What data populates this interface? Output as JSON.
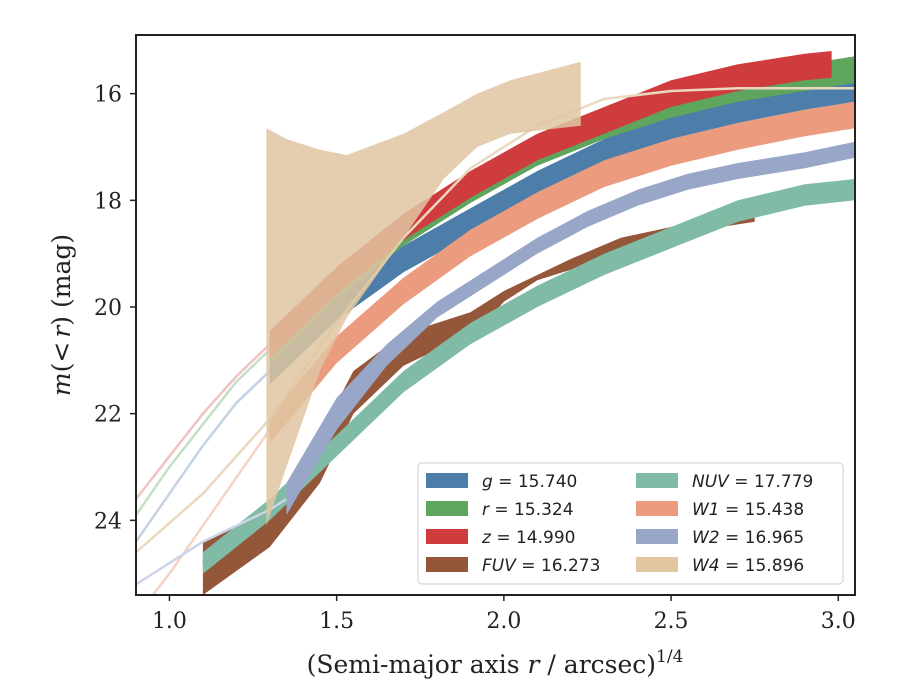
{
  "chart_data": {
    "type": "line",
    "xlabel": "(Semi-major axis r / arcsec)",
    "xlabel_parts": {
      "prefix": "(Semi-major axis ",
      "var": "r",
      "suffix": " / arcsec)",
      "exponent": "1/4"
    },
    "ylabel": "m(< r) (mag)",
    "ylabel_parts": {
      "m": "m",
      "open": "(",
      "lt": "<",
      "r": "r",
      "close": ")",
      "unit": " (mag)"
    },
    "xlim": [
      0.9,
      3.05
    ],
    "ylim": [
      25.4,
      14.9
    ],
    "y_inverted": true,
    "xticks": [
      {
        "value": 1.0,
        "label": "1.0"
      },
      {
        "value": 1.5,
        "label": "1.5"
      },
      {
        "value": 2.0,
        "label": "2.0"
      },
      {
        "value": 2.5,
        "label": "2.5"
      },
      {
        "value": 3.0,
        "label": "3.0"
      }
    ],
    "yticks": [
      {
        "value": 16,
        "label": "16"
      },
      {
        "value": 18,
        "label": "18"
      },
      {
        "value": 20,
        "label": "20"
      },
      {
        "value": 22,
        "label": "22"
      },
      {
        "value": 24,
        "label": "24"
      }
    ],
    "grid": false,
    "legend_position": "lower-right",
    "series": [
      {
        "key": "g",
        "legend_label": "g = 15.740",
        "legend_var": "g",
        "legend_value": "15.740",
        "color": "#4c7ea9",
        "model_color": "#c4d2e4",
        "band": 0.5,
        "x": [
          1.3,
          1.5,
          1.7,
          1.9,
          2.1,
          2.3,
          2.5,
          2.7,
          2.9,
          3.05
        ],
        "y": [
          21.2,
          20.0,
          19.1,
          18.4,
          17.7,
          17.1,
          16.6,
          16.3,
          16.05,
          15.9
        ],
        "model_x": [
          0.9,
          1.0,
          1.1,
          1.2,
          1.3
        ],
        "model_y": [
          24.4,
          23.5,
          22.6,
          21.8,
          21.2
        ]
      },
      {
        "key": "r",
        "legend_label": "r = 15.324",
        "legend_var": "r",
        "legend_value": "15.324",
        "color": "#5ea55e",
        "model_color": "#c4e0c4",
        "band": 0.5,
        "x": [
          1.3,
          1.5,
          1.7,
          1.9,
          2.1,
          2.3,
          2.5,
          2.7,
          2.9,
          3.05
        ],
        "y": [
          20.8,
          19.6,
          18.6,
          17.8,
          17.1,
          16.6,
          16.2,
          15.9,
          15.7,
          15.55
        ],
        "model_x": [
          0.9,
          1.0,
          1.1,
          1.2,
          1.3
        ],
        "model_y": [
          23.9,
          23.0,
          22.2,
          21.4,
          20.8
        ]
      },
      {
        "key": "z",
        "legend_label": "z = 14.990",
        "legend_var": "z",
        "legend_value": "14.990",
        "color": "#cf3c3e",
        "model_color": "#f0c3c3",
        "band": 0.5,
        "x": [
          1.3,
          1.5,
          1.7,
          1.9,
          2.1,
          2.3,
          2.5,
          2.7,
          2.9,
          2.98
        ],
        "y": [
          20.7,
          19.5,
          18.5,
          17.7,
          17.0,
          16.5,
          16.0,
          15.7,
          15.5,
          15.45
        ],
        "model_x": [
          0.9,
          1.0,
          1.1,
          1.2,
          1.3
        ],
        "model_y": [
          23.6,
          22.8,
          22.0,
          21.3,
          20.7
        ]
      },
      {
        "key": "FUV",
        "legend_label": "FUV = 16.273",
        "legend_var": "FUV",
        "legend_value": "16.273",
        "color": "#94573a",
        "model_color": "#c9a08d",
        "band_low": [
          25.4,
          24.5,
          23.3,
          22.0,
          21.1,
          20.8,
          20.6,
          19.9,
          19.5,
          19.3,
          19.0,
          18.8,
          18.5,
          18.4
        ],
        "band_high": [
          24.4,
          23.8,
          22.4,
          21.2,
          20.5,
          20.3,
          20.1,
          19.7,
          19.4,
          19.1,
          18.7,
          18.5,
          18.2,
          18.2
        ],
        "x": [
          1.1,
          1.3,
          1.45,
          1.55,
          1.7,
          1.8,
          1.9,
          2.0,
          2.1,
          2.2,
          2.35,
          2.5,
          2.65,
          2.75
        ],
        "y": [
          24.9,
          24.1,
          22.8,
          21.6,
          20.8,
          20.5,
          20.3,
          19.8,
          19.45,
          19.2,
          18.85,
          18.6,
          18.35,
          18.3
        ],
        "model_x": [
          2.75,
          2.85,
          2.95,
          3.05
        ],
        "model_y": [
          18.3,
          18.05,
          17.9,
          17.75
        ]
      },
      {
        "key": "NUV",
        "legend_label": "NUV = 17.779",
        "legend_var": "NUV",
        "legend_value": "17.779",
        "color": "#7fbba5",
        "model_color": "#cde5dc",
        "band": 0.4,
        "x": [
          1.1,
          1.3,
          1.5,
          1.7,
          1.9,
          2.1,
          2.3,
          2.5,
          2.7,
          2.9,
          3.05
        ],
        "y": [
          24.8,
          23.8,
          22.6,
          21.4,
          20.5,
          19.8,
          19.2,
          18.7,
          18.2,
          17.9,
          17.8
        ],
        "model_x": [],
        "model_y": []
      },
      {
        "key": "W1",
        "legend_label": "W1 = 15.438",
        "legend_var": "W1",
        "legend_value": "15.438",
        "color": "#eb9b7e",
        "model_color": "#f6d2c5",
        "band": 0.5,
        "x": [
          1.3,
          1.5,
          1.7,
          1.9,
          2.1,
          2.3,
          2.5,
          2.7,
          2.9,
          3.05
        ],
        "y": [
          22.3,
          20.8,
          19.7,
          18.8,
          18.1,
          17.5,
          17.1,
          16.8,
          16.55,
          16.4
        ],
        "model_x": [
          0.9,
          1.0,
          1.1,
          1.2,
          1.3
        ],
        "model_y": [
          25.8,
          25.0,
          24.1,
          23.2,
          22.3
        ]
      },
      {
        "key": "W2",
        "legend_label": "W2 = 16.965",
        "legend_var": "W2",
        "legend_value": "16.965",
        "color": "#98a6c8",
        "model_color": "#cdd4e6",
        "band_low": [
          23.9,
          22.3,
          21.1,
          20.2,
          19.6,
          19.0,
          18.5,
          18.1,
          17.8,
          17.6,
          17.4,
          17.2
        ],
        "band_high": [
          23.3,
          21.7,
          20.7,
          19.9,
          19.3,
          18.7,
          18.2,
          17.8,
          17.5,
          17.3,
          17.1,
          16.9
        ],
        "x": [
          1.35,
          1.5,
          1.65,
          1.8,
          1.95,
          2.1,
          2.25,
          2.4,
          2.55,
          2.7,
          2.9,
          3.05
        ],
        "y": [
          23.6,
          22.0,
          20.9,
          20.05,
          19.45,
          18.85,
          18.35,
          17.95,
          17.65,
          17.45,
          17.25,
          17.05
        ],
        "model_x": [
          0.9,
          1.1,
          1.3,
          1.35
        ],
        "model_y": [
          25.2,
          24.4,
          23.8,
          23.6
        ]
      },
      {
        "key": "W4",
        "legend_label": "W4 = 15.896",
        "legend_var": "W4",
        "legend_value": "15.896",
        "color": "#dfc6a1",
        "model_color": "#ead9be",
        "band_x": [
          1.29,
          1.35,
          1.45,
          1.53,
          1.7,
          1.82,
          1.92,
          2.02,
          2.23
        ],
        "band_low": [
          24.1,
          23.0,
          21.2,
          20.2,
          18.7,
          17.6,
          17.0,
          16.75,
          16.6
        ],
        "band_high": [
          16.65,
          16.85,
          17.05,
          17.15,
          16.75,
          16.35,
          16.0,
          15.75,
          15.4
        ],
        "x": [],
        "y": [],
        "model_x": [
          0.9,
          1.1,
          1.3,
          1.5,
          1.7,
          1.9,
          2.1,
          2.3,
          2.5,
          2.7,
          2.9,
          3.05
        ],
        "model_y": [
          24.6,
          23.5,
          22.1,
          20.3,
          18.7,
          17.4,
          16.6,
          16.1,
          15.95,
          15.9,
          15.9,
          15.9
        ]
      }
    ]
  }
}
